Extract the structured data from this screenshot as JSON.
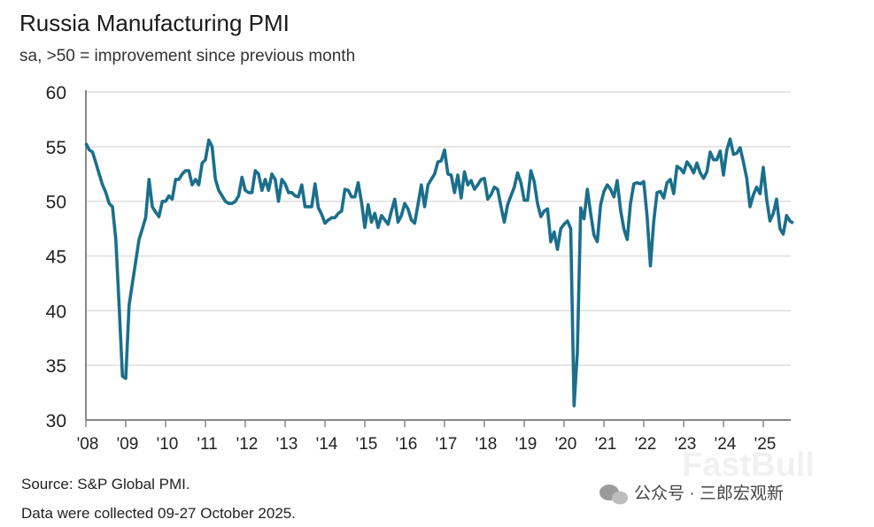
{
  "chart_data": {
    "type": "line",
    "title": "Russia Manufacturing PMI",
    "subtitle": "sa, >50 = improvement since previous month",
    "xlabel": "",
    "ylabel": "",
    "ylim": [
      30,
      60
    ],
    "yticks": [
      "60",
      "55",
      "50",
      "45",
      "40",
      "35",
      "30"
    ],
    "xticks": [
      "'08",
      "'09",
      "'10",
      "'11",
      "'12",
      "'13",
      "'14",
      "'15",
      "'16",
      "'17",
      "'18",
      "'19",
      "'20",
      "'21",
      "'22",
      "'23",
      "'24",
      "'25"
    ],
    "grid": true,
    "start": "2008-01",
    "frequency": "monthly",
    "series": [
      {
        "name": "Russia Manufacturing PMI",
        "color": "#1a6f8c",
        "values_by_year": {
          "2008": [
            55.3,
            54.7,
            54.5,
            53.5,
            52.5,
            51.5,
            50.8,
            49.8,
            49.5,
            46.5,
            40.5,
            34.0
          ],
          "2009": [
            33.8,
            40.5,
            42.5,
            44.5,
            46.5,
            47.5,
            48.5,
            52.0,
            49.5,
            49.0,
            48.6,
            50.0
          ],
          "2010": [
            50.0,
            50.5,
            50.2,
            52.0,
            52.0,
            52.5,
            52.8,
            52.8,
            51.5,
            52.0,
            51.5,
            53.5
          ],
          "2011": [
            53.8,
            55.6,
            55.0,
            52.0,
            51.0,
            50.5,
            50.0,
            49.8,
            49.8,
            50.0,
            50.5,
            52.2
          ],
          "2012": [
            51.0,
            50.8,
            50.8,
            52.8,
            52.5,
            51.0,
            52.0,
            51.0,
            52.5,
            52.0,
            50.0,
            52.0
          ],
          "2013": [
            51.6,
            50.8,
            50.8,
            50.5,
            50.4,
            51.5,
            49.5,
            49.5,
            49.5,
            51.6,
            49.4,
            48.8
          ],
          "2014": [
            48.0,
            48.3,
            48.5,
            48.5,
            48.9,
            49.1,
            51.1,
            51.0,
            50.4,
            50.4,
            51.7,
            49.9
          ],
          "2015": [
            47.6,
            49.7,
            48.1,
            48.9,
            47.6,
            48.7,
            48.3,
            47.9,
            49.1,
            50.2,
            48.1,
            48.7
          ],
          "2016": [
            49.8,
            49.3,
            48.3,
            48.0,
            49.7,
            51.5,
            49.5,
            51.5,
            52.0,
            52.5,
            53.6,
            53.7
          ],
          "2017": [
            54.7,
            52.5,
            52.4,
            50.8,
            52.4,
            50.3,
            52.7,
            51.5,
            51.9,
            51.1,
            51.5,
            52.0
          ],
          "2018": [
            52.1,
            50.2,
            50.6,
            51.3,
            51.1,
            49.5,
            48.1,
            49.7,
            50.5,
            51.3,
            52.6,
            51.7
          ],
          "2019": [
            50.1,
            50.1,
            52.8,
            51.8,
            49.8,
            48.6,
            49.1,
            49.3,
            46.3,
            47.2,
            45.6,
            47.5
          ],
          "2020": [
            47.9,
            48.2,
            47.5,
            31.3,
            36.2,
            49.4,
            48.4,
            51.1,
            48.9,
            46.9,
            46.3,
            49.7
          ],
          "2021": [
            50.9,
            51.5,
            51.1,
            50.4,
            51.9,
            49.2,
            47.5,
            46.5,
            49.8,
            51.6,
            51.7,
            51.6
          ],
          "2022": [
            51.8,
            48.6,
            44.1,
            48.2,
            50.8,
            50.9,
            50.3,
            51.7,
            52.0,
            50.7,
            53.2,
            53.0
          ],
          "2023": [
            52.6,
            53.6,
            53.2,
            52.6,
            53.5,
            52.6,
            52.1,
            52.7,
            54.5,
            53.8,
            53.8,
            54.6
          ],
          "2024": [
            52.4,
            54.7,
            55.7,
            54.3,
            54.4,
            54.9,
            53.6,
            52.1,
            49.5,
            50.6,
            51.3,
            50.7
          ],
          "2025": [
            53.1,
            50.2,
            48.2,
            48.9,
            50.2,
            47.5,
            47.0,
            48.7,
            48.2,
            48.0
          ]
        }
      }
    ],
    "source": "Source: S&P Global PMI.",
    "note": "Data were collected 09-27 October 2025."
  },
  "watermark": {
    "brand": "FastBull",
    "wechat": "公众号 · 三郎宏观新"
  }
}
